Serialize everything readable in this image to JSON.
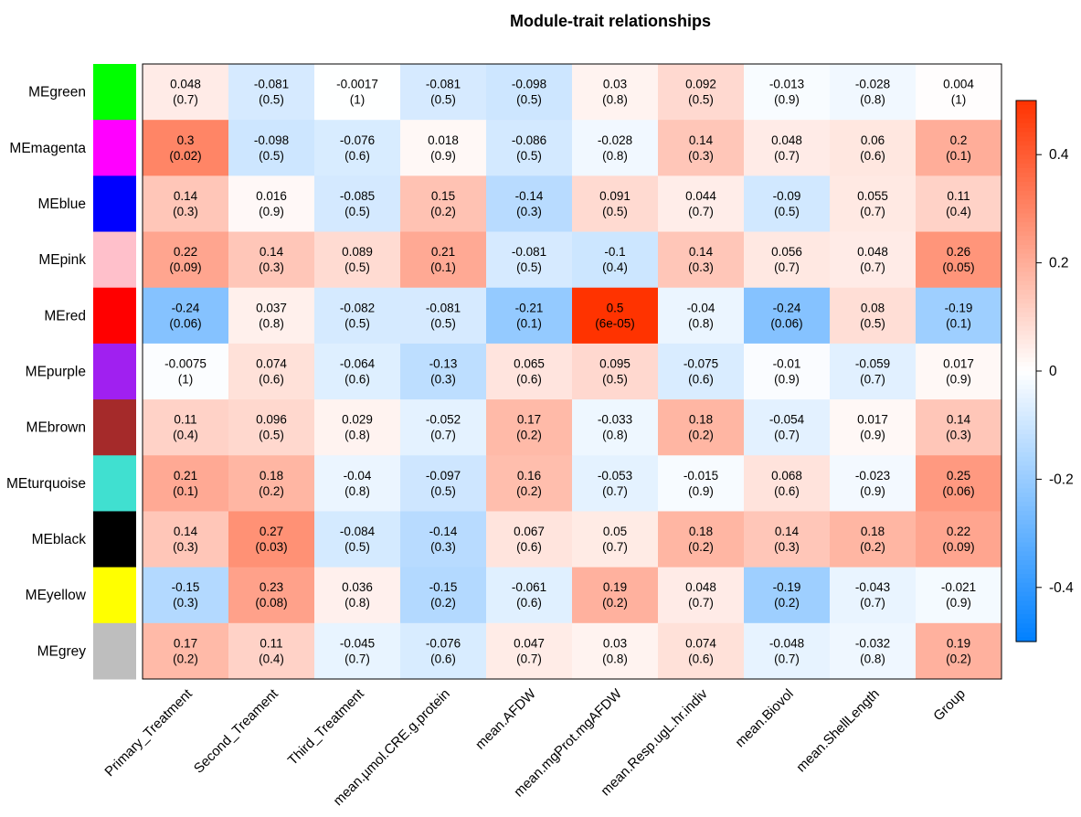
{
  "chart_data": {
    "type": "heatmap",
    "title": "Module-trait relationships",
    "rows": [
      "MEgreen",
      "MEmagenta",
      "MEblue",
      "MEpink",
      "MEred",
      "MEpurple",
      "MEbrown",
      "MEturquoise",
      "MEblack",
      "MEyellow",
      "MEgrey"
    ],
    "row_colors": [
      "#00ff00",
      "#ff00ff",
      "#0000ff",
      "#ffc0cb",
      "#ff0000",
      "#a020f0",
      "#a52a2a",
      "#40e0d0",
      "#000000",
      "#ffff00",
      "#bebebe"
    ],
    "columns": [
      "Primary_Treatment",
      "Second_Treament",
      "Third_Treatment",
      "mean.µmol.CRE.g.protein",
      "mean.AFDW",
      "mean.mgProt.mgAFDW",
      "mean.Resp.ugL.hr.indiv",
      "mean.Biovol",
      "mean.ShellLength",
      "Group"
    ],
    "correlations": [
      [
        0.048,
        -0.081,
        -0.0017,
        -0.081,
        -0.098,
        0.03,
        0.092,
        -0.013,
        -0.028,
        0.004
      ],
      [
        0.3,
        -0.098,
        -0.076,
        0.018,
        -0.086,
        -0.028,
        0.14,
        0.048,
        0.06,
        0.2
      ],
      [
        0.14,
        0.016,
        -0.085,
        0.15,
        -0.14,
        0.091,
        0.044,
        -0.09,
        0.055,
        0.11
      ],
      [
        0.22,
        0.14,
        0.089,
        0.21,
        -0.081,
        -0.1,
        0.14,
        0.056,
        0.048,
        0.26
      ],
      [
        -0.24,
        0.037,
        -0.082,
        -0.081,
        -0.21,
        0.5,
        -0.04,
        -0.24,
        0.08,
        -0.19
      ],
      [
        -0.0075,
        0.074,
        -0.064,
        -0.13,
        0.065,
        0.095,
        -0.075,
        -0.01,
        -0.059,
        0.017
      ],
      [
        0.11,
        0.096,
        0.029,
        -0.052,
        0.17,
        -0.033,
        0.18,
        -0.054,
        0.017,
        0.14
      ],
      [
        0.21,
        0.18,
        -0.04,
        -0.097,
        0.16,
        -0.053,
        -0.015,
        0.068,
        -0.023,
        0.25
      ],
      [
        0.14,
        0.27,
        -0.084,
        -0.14,
        0.067,
        0.05,
        0.18,
        0.14,
        0.18,
        0.22
      ],
      [
        -0.15,
        0.23,
        0.036,
        -0.15,
        -0.061,
        0.19,
        0.048,
        -0.19,
        -0.043,
        -0.021
      ],
      [
        0.17,
        0.11,
        -0.045,
        -0.076,
        0.047,
        0.03,
        0.074,
        -0.048,
        -0.032,
        0.19
      ]
    ],
    "labels": [
      [
        "0.048",
        "-0.081",
        "-0.0017",
        "-0.081",
        "-0.098",
        "0.03",
        "0.092",
        "-0.013",
        "-0.028",
        "0.004"
      ],
      [
        "0.3",
        "-0.098",
        "-0.076",
        "0.018",
        "-0.086",
        "-0.028",
        "0.14",
        "0.048",
        "0.06",
        "0.2"
      ],
      [
        "0.14",
        "0.016",
        "-0.085",
        "0.15",
        "-0.14",
        "0.091",
        "0.044",
        "-0.09",
        "0.055",
        "0.11"
      ],
      [
        "0.22",
        "0.14",
        "0.089",
        "0.21",
        "-0.081",
        "-0.1",
        "0.14",
        "0.056",
        "0.048",
        "0.26"
      ],
      [
        "-0.24",
        "0.037",
        "-0.082",
        "-0.081",
        "-0.21",
        "0.5",
        "-0.04",
        "-0.24",
        "0.08",
        "-0.19"
      ],
      [
        "-0.0075",
        "0.074",
        "-0.064",
        "-0.13",
        "0.065",
        "0.095",
        "-0.075",
        "-0.01",
        "-0.059",
        "0.017"
      ],
      [
        "0.11",
        "0.096",
        "0.029",
        "-0.052",
        "0.17",
        "-0.033",
        "0.18",
        "-0.054",
        "0.017",
        "0.14"
      ],
      [
        "0.21",
        "0.18",
        "-0.04",
        "-0.097",
        "0.16",
        "-0.053",
        "-0.015",
        "0.068",
        "-0.023",
        "0.25"
      ],
      [
        "0.14",
        "0.27",
        "-0.084",
        "-0.14",
        "0.067",
        "0.05",
        "0.18",
        "0.14",
        "0.18",
        "0.22"
      ],
      [
        "-0.15",
        "0.23",
        "0.036",
        "-0.15",
        "-0.061",
        "0.19",
        "0.048",
        "-0.19",
        "-0.043",
        "-0.021"
      ],
      [
        "0.17",
        "0.11",
        "-0.045",
        "-0.076",
        "0.047",
        "0.03",
        "0.074",
        "-0.048",
        "-0.032",
        "0.19"
      ]
    ],
    "pvalues": [
      [
        "(0.7)",
        "(0.5)",
        "(1)",
        "(0.5)",
        "(0.5)",
        "(0.8)",
        "(0.5)",
        "(0.9)",
        "(0.8)",
        "(1)"
      ],
      [
        "(0.02)",
        "(0.5)",
        "(0.6)",
        "(0.9)",
        "(0.5)",
        "(0.8)",
        "(0.3)",
        "(0.7)",
        "(0.6)",
        "(0.1)"
      ],
      [
        "(0.3)",
        "(0.9)",
        "(0.5)",
        "(0.2)",
        "(0.3)",
        "(0.5)",
        "(0.7)",
        "(0.5)",
        "(0.7)",
        "(0.4)"
      ],
      [
        "(0.09)",
        "(0.3)",
        "(0.5)",
        "(0.1)",
        "(0.5)",
        "(0.4)",
        "(0.3)",
        "(0.7)",
        "(0.7)",
        "(0.05)"
      ],
      [
        "(0.06)",
        "(0.8)",
        "(0.5)",
        "(0.5)",
        "(0.1)",
        "(6e-05)",
        "(0.8)",
        "(0.06)",
        "(0.5)",
        "(0.1)"
      ],
      [
        "(1)",
        "(0.6)",
        "(0.6)",
        "(0.3)",
        "(0.6)",
        "(0.5)",
        "(0.6)",
        "(0.9)",
        "(0.7)",
        "(0.9)"
      ],
      [
        "(0.4)",
        "(0.5)",
        "(0.8)",
        "(0.7)",
        "(0.2)",
        "(0.8)",
        "(0.2)",
        "(0.7)",
        "(0.9)",
        "(0.3)"
      ],
      [
        "(0.1)",
        "(0.2)",
        "(0.8)",
        "(0.5)",
        "(0.2)",
        "(0.7)",
        "(0.9)",
        "(0.6)",
        "(0.9)",
        "(0.06)"
      ],
      [
        "(0.3)",
        "(0.03)",
        "(0.5)",
        "(0.3)",
        "(0.6)",
        "(0.7)",
        "(0.2)",
        "(0.3)",
        "(0.2)",
        "(0.09)"
      ],
      [
        "(0.3)",
        "(0.08)",
        "(0.8)",
        "(0.2)",
        "(0.6)",
        "(0.2)",
        "(0.7)",
        "(0.2)",
        "(0.7)",
        "(0.9)"
      ],
      [
        "(0.2)",
        "(0.4)",
        "(0.7)",
        "(0.6)",
        "(0.7)",
        "(0.8)",
        "(0.6)",
        "(0.7)",
        "(0.8)",
        "(0.2)"
      ]
    ],
    "color_scale": {
      "min": -0.5,
      "max": 0.5,
      "low_color": "#0080ff",
      "mid_color": "#ffffff",
      "high_color": "#ff3300",
      "ticks": [
        "0.4",
        "0.2",
        "0",
        "-0.2",
        "-0.4"
      ]
    }
  }
}
